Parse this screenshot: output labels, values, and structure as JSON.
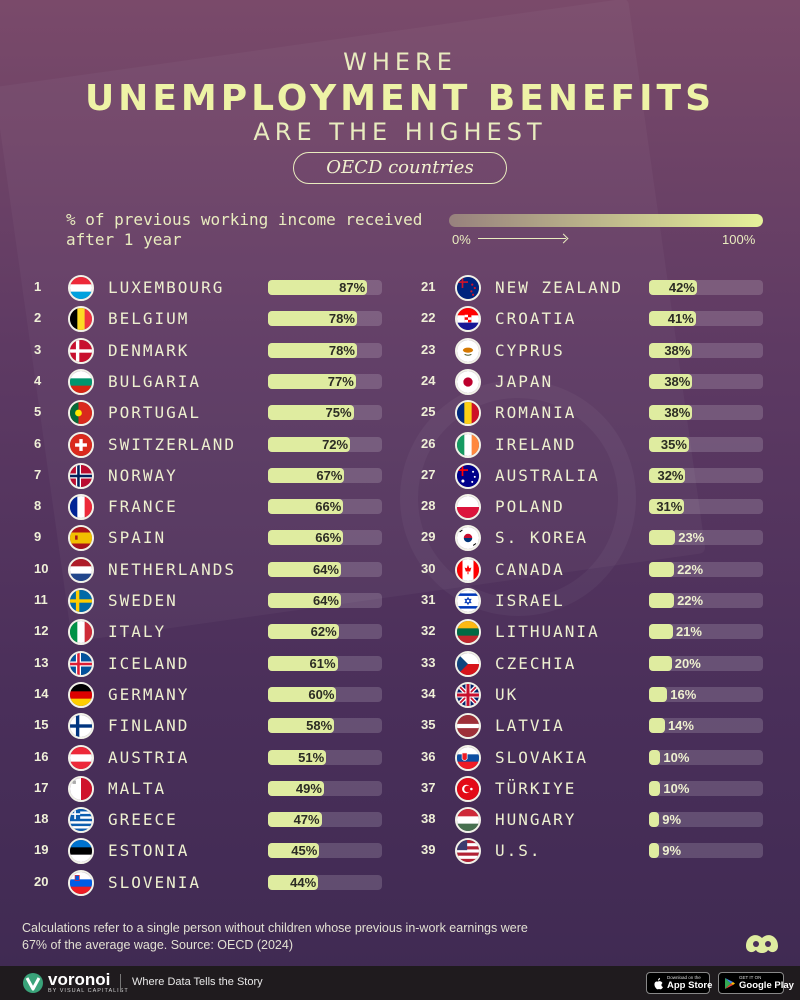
{
  "header": {
    "line1": "WHERE",
    "line2": "UNEMPLOYMENT BENEFITS",
    "line3": "ARE THE HIGHEST",
    "pill": "OECD countries"
  },
  "measure": {
    "label": "% of previous working income received after 1 year",
    "legend_min": "0%",
    "legend_max": "100%"
  },
  "chart_data": {
    "type": "bar",
    "title": "Where Unemployment Benefits Are the Highest",
    "subtitle": "OECD countries",
    "xlabel": "",
    "ylabel": "% of previous working income received after 1 year",
    "ylim": [
      0,
      100
    ],
    "categories": [
      "Luxembourg",
      "Belgium",
      "Denmark",
      "Bulgaria",
      "Portugal",
      "Switzerland",
      "Norway",
      "France",
      "Spain",
      "Netherlands",
      "Sweden",
      "Italy",
      "Iceland",
      "Germany",
      "Finland",
      "Austria",
      "Malta",
      "Greece",
      "Estonia",
      "Slovenia",
      "New Zealand",
      "Croatia",
      "Cyprus",
      "Japan",
      "Romania",
      "Ireland",
      "Australia",
      "Poland",
      "S. Korea",
      "Canada",
      "Israel",
      "Lithuania",
      "Czechia",
      "UK",
      "Latvia",
      "Slovakia",
      "Türkiye",
      "Hungary",
      "U.S."
    ],
    "values": [
      87,
      78,
      78,
      77,
      75,
      72,
      67,
      66,
      66,
      64,
      64,
      62,
      61,
      60,
      58,
      51,
      49,
      47,
      45,
      44,
      42,
      41,
      38,
      38,
      38,
      35,
      32,
      31,
      23,
      22,
      22,
      21,
      20,
      16,
      14,
      10,
      10,
      9,
      9
    ]
  },
  "rows": [
    {
      "rank": "1",
      "name": "LUXEMBOURG",
      "label": "87%",
      "value": 87,
      "flag": "luxembourg-flag-icon"
    },
    {
      "rank": "2",
      "name": "BELGIUM",
      "label": "78%",
      "value": 78,
      "flag": "belgium-flag-icon"
    },
    {
      "rank": "3",
      "name": "DENMARK",
      "label": "78%",
      "value": 78,
      "flag": "denmark-flag-icon"
    },
    {
      "rank": "4",
      "name": "BULGARIA",
      "label": "77%",
      "value": 77,
      "flag": "bulgaria-flag-icon"
    },
    {
      "rank": "5",
      "name": "PORTUGAL",
      "label": "75%",
      "value": 75,
      "flag": "portugal-flag-icon"
    },
    {
      "rank": "6",
      "name": "SWITZERLAND",
      "label": "72%",
      "value": 72,
      "flag": "switzerland-flag-icon"
    },
    {
      "rank": "7",
      "name": "NORWAY",
      "label": "67%",
      "value": 67,
      "flag": "norway-flag-icon"
    },
    {
      "rank": "8",
      "name": "FRANCE",
      "label": "66%",
      "value": 66,
      "flag": "france-flag-icon"
    },
    {
      "rank": "9",
      "name": "SPAIN",
      "label": "66%",
      "value": 66,
      "flag": "spain-flag-icon"
    },
    {
      "rank": "10",
      "name": "NETHERLANDS",
      "label": "64%",
      "value": 64,
      "flag": "netherlands-flag-icon"
    },
    {
      "rank": "11",
      "name": "SWEDEN",
      "label": "64%",
      "value": 64,
      "flag": "sweden-flag-icon"
    },
    {
      "rank": "12",
      "name": "ITALY",
      "label": "62%",
      "value": 62,
      "flag": "italy-flag-icon"
    },
    {
      "rank": "13",
      "name": "ICELAND",
      "label": "61%",
      "value": 61,
      "flag": "iceland-flag-icon"
    },
    {
      "rank": "14",
      "name": "GERMANY",
      "label": "60%",
      "value": 60,
      "flag": "germany-flag-icon"
    },
    {
      "rank": "15",
      "name": "FINLAND",
      "label": "58%",
      "value": 58,
      "flag": "finland-flag-icon"
    },
    {
      "rank": "16",
      "name": "AUSTRIA",
      "label": "51%",
      "value": 51,
      "flag": "austria-flag-icon"
    },
    {
      "rank": "17",
      "name": "MALTA",
      "label": "49%",
      "value": 49,
      "flag": "malta-flag-icon"
    },
    {
      "rank": "18",
      "name": "GREECE",
      "label": "47%",
      "value": 47,
      "flag": "greece-flag-icon"
    },
    {
      "rank": "19",
      "name": "ESTONIA",
      "label": "45%",
      "value": 45,
      "flag": "estonia-flag-icon"
    },
    {
      "rank": "20",
      "name": "SLOVENIA",
      "label": "44%",
      "value": 44,
      "flag": "slovenia-flag-icon"
    },
    {
      "rank": "21",
      "name": "NEW ZEALAND",
      "label": "42%",
      "value": 42,
      "flag": "new-zealand-flag-icon"
    },
    {
      "rank": "22",
      "name": "CROATIA",
      "label": "41%",
      "value": 41,
      "flag": "croatia-flag-icon"
    },
    {
      "rank": "23",
      "name": "CYPRUS",
      "label": "38%",
      "value": 38,
      "flag": "cyprus-flag-icon"
    },
    {
      "rank": "24",
      "name": "JAPAN",
      "label": "38%",
      "value": 38,
      "flag": "japan-flag-icon"
    },
    {
      "rank": "25",
      "name": "ROMANIA",
      "label": "38%",
      "value": 38,
      "flag": "romania-flag-icon"
    },
    {
      "rank": "26",
      "name": "IRELAND",
      "label": "35%",
      "value": 35,
      "flag": "ireland-flag-icon"
    },
    {
      "rank": "27",
      "name": "AUSTRALIA",
      "label": "32%",
      "value": 32,
      "flag": "australia-flag-icon"
    },
    {
      "rank": "28",
      "name": "POLAND",
      "label": "31%",
      "value": 31,
      "flag": "poland-flag-icon"
    },
    {
      "rank": "29",
      "name": "S. KOREA",
      "label": "23%",
      "value": 23,
      "flag": "south-korea-flag-icon"
    },
    {
      "rank": "30",
      "name": "CANADA",
      "label": "22%",
      "value": 22,
      "flag": "canada-flag-icon"
    },
    {
      "rank": "31",
      "name": "ISRAEL",
      "label": "22%",
      "value": 22,
      "flag": "israel-flag-icon"
    },
    {
      "rank": "32",
      "name": "LITHUANIA",
      "label": "21%",
      "value": 21,
      "flag": "lithuania-flag-icon"
    },
    {
      "rank": "33",
      "name": "CZECHIA",
      "label": "20%",
      "value": 20,
      "flag": "czechia-flag-icon"
    },
    {
      "rank": "34",
      "name": "UK",
      "label": "16%",
      "value": 16,
      "flag": "uk-flag-icon"
    },
    {
      "rank": "35",
      "name": "LATVIA",
      "label": "14%",
      "value": 14,
      "flag": "latvia-flag-icon"
    },
    {
      "rank": "36",
      "name": "SLOVAKIA",
      "label": "10%",
      "value": 10,
      "flag": "slovakia-flag-icon"
    },
    {
      "rank": "37",
      "name": "TÜRKIYE",
      "label": "10%",
      "value": 10,
      "flag": "turkiye-flag-icon"
    },
    {
      "rank": "38",
      "name": "HUNGARY",
      "label": "9%",
      "value": 9,
      "flag": "hungary-flag-icon"
    },
    {
      "rank": "39",
      "name": "U.S.",
      "label": "9%",
      "value": 9,
      "flag": "us-flag-icon"
    }
  ],
  "footnote": "Calculations refer to a single person without children whose previous in-work earnings were 67% of the average wage. Source: OECD (2024)",
  "footer": {
    "brand": "voronoi",
    "brand_sub": "BY VISUAL CAPITALIST",
    "tagline": "Where Data Tells the Story",
    "appstore_small": "Download on the",
    "appstore_big": "App Store",
    "googleplay_small": "GET IT ON",
    "googleplay_big": "Google Play"
  },
  "colors": {
    "bar_fill": "#dfeca0",
    "bar_track": "rgba(255,255,255,0.16)",
    "title": "#eef3a6",
    "background_top": "#7a4a6a",
    "background_bottom": "#3f2a52"
  }
}
